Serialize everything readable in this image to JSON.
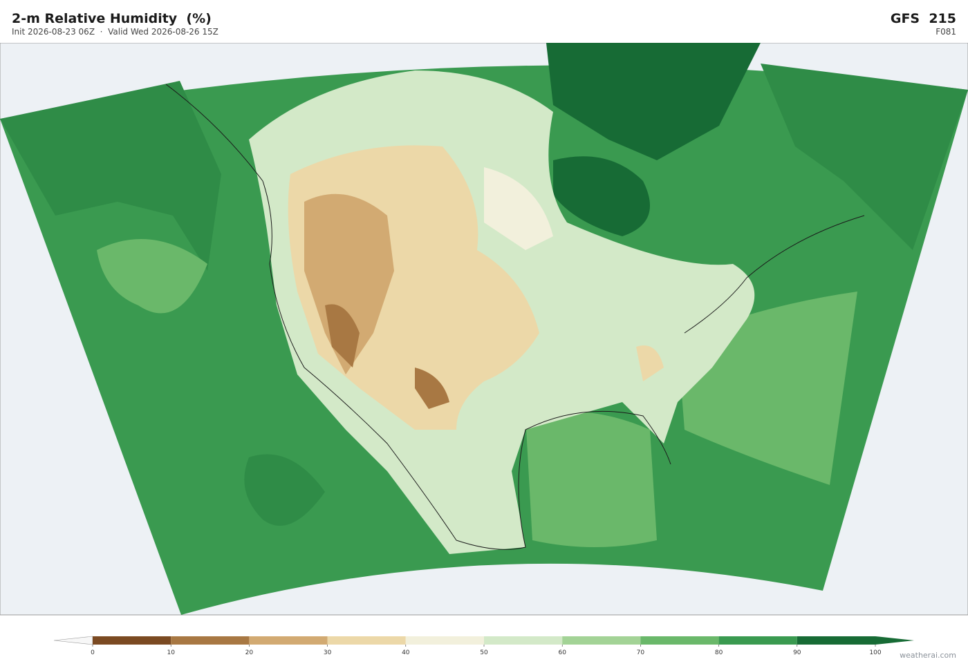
{
  "header": {
    "title": "2-m Relative Humidity  (%)",
    "subtitle": "Init 2026-08-23 06Z  ·  Valid Wed 2026-08-26 15Z",
    "model": "GFS  215",
    "forecast_hour": "F081"
  },
  "colorbar": {
    "levels": [
      0,
      10,
      20,
      30,
      40,
      50,
      60,
      70,
      80,
      90,
      100
    ],
    "colors": [
      "#7b4a22",
      "#a87843",
      "#d2aa72",
      "#ecd8a8",
      "#f2f0dc",
      "#d3e9c8",
      "#a3d396",
      "#6ab86a",
      "#3a9a50",
      "#176b35"
    ],
    "under_color": "#f7f7f7",
    "over_color": "#176b35"
  },
  "footer": {
    "credit": "weatherai.com"
  }
}
